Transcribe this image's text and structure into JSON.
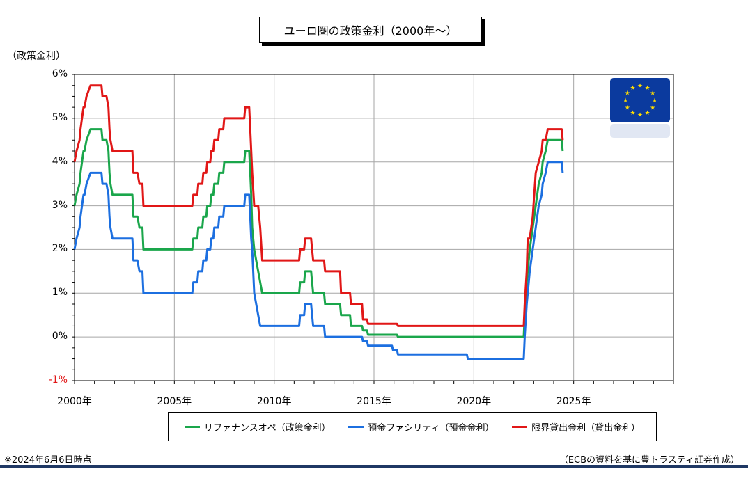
{
  "title": "ユーロ圏の政策金利（2000年～）",
  "ylabel": "（政策金利）",
  "footnote": "※2024年6月6日時点",
  "source": "（ECBの資料を基に豊トラスティ証券作成）",
  "colors": {
    "mro": "#1aa64b",
    "deposit": "#1c6fe0",
    "marginal": "#e11717",
    "grid": "#a6a6a6",
    "flag": "#0b3a9e",
    "star": "#ffdd00",
    "bar": "#1f3864"
  },
  "chart_data": {
    "type": "line",
    "xlabel": "",
    "ylabel": "（政策金利）",
    "xlim": [
      2000,
      2030
    ],
    "ylim": [
      -1,
      6
    ],
    "x_ticks": [
      "2000年",
      "2005年",
      "2010年",
      "2015年",
      "2020年",
      "2025年"
    ],
    "y_ticks": [
      "-1%",
      "0%",
      "1%",
      "2%",
      "3%",
      "4%",
      "5%",
      "6%"
    ],
    "legend_position": "bottom",
    "grid": true,
    "series": [
      {
        "name": "リファナンスオペ（政策金利）",
        "color": "#1aa64b",
        "points": [
          [
            2000.0,
            3.0
          ],
          [
            2000.1,
            3.25
          ],
          [
            2000.25,
            3.5
          ],
          [
            2000.3,
            3.75
          ],
          [
            2000.45,
            4.25
          ],
          [
            2000.5,
            4.25
          ],
          [
            2000.6,
            4.5
          ],
          [
            2000.8,
            4.75
          ],
          [
            2001.35,
            4.75
          ],
          [
            2001.4,
            4.5
          ],
          [
            2001.6,
            4.5
          ],
          [
            2001.7,
            4.25
          ],
          [
            2001.75,
            3.75
          ],
          [
            2001.8,
            3.5
          ],
          [
            2001.9,
            3.25
          ],
          [
            2002.9,
            3.25
          ],
          [
            2002.95,
            2.75
          ],
          [
            2003.15,
            2.75
          ],
          [
            2003.25,
            2.5
          ],
          [
            2003.4,
            2.5
          ],
          [
            2003.45,
            2.0
          ],
          [
            2005.9,
            2.0
          ],
          [
            2005.95,
            2.25
          ],
          [
            2006.15,
            2.25
          ],
          [
            2006.2,
            2.5
          ],
          [
            2006.4,
            2.5
          ],
          [
            2006.45,
            2.75
          ],
          [
            2006.6,
            2.75
          ],
          [
            2006.65,
            3.0
          ],
          [
            2006.8,
            3.0
          ],
          [
            2006.85,
            3.25
          ],
          [
            2006.95,
            3.25
          ],
          [
            2007.0,
            3.5
          ],
          [
            2007.2,
            3.5
          ],
          [
            2007.25,
            3.75
          ],
          [
            2007.45,
            3.75
          ],
          [
            2007.5,
            4.0
          ],
          [
            2008.5,
            4.0
          ],
          [
            2008.55,
            4.25
          ],
          [
            2008.75,
            4.25
          ],
          [
            2008.8,
            3.75
          ],
          [
            2008.85,
            3.25
          ],
          [
            2008.9,
            2.5
          ],
          [
            2009.0,
            2.0
          ],
          [
            2009.2,
            1.5
          ],
          [
            2009.3,
            1.25
          ],
          [
            2009.4,
            1.0
          ],
          [
            2011.25,
            1.0
          ],
          [
            2011.3,
            1.25
          ],
          [
            2011.5,
            1.25
          ],
          [
            2011.55,
            1.5
          ],
          [
            2011.85,
            1.5
          ],
          [
            2011.9,
            1.25
          ],
          [
            2011.95,
            1.0
          ],
          [
            2012.5,
            1.0
          ],
          [
            2012.55,
            0.75
          ],
          [
            2013.3,
            0.75
          ],
          [
            2013.35,
            0.5
          ],
          [
            2013.8,
            0.5
          ],
          [
            2013.85,
            0.25
          ],
          [
            2014.4,
            0.25
          ],
          [
            2014.45,
            0.15
          ],
          [
            2014.65,
            0.15
          ],
          [
            2014.7,
            0.05
          ],
          [
            2016.15,
            0.05
          ],
          [
            2016.2,
            0.0
          ],
          [
            2022.5,
            0.0
          ],
          [
            2022.55,
            0.5
          ],
          [
            2022.65,
            1.25
          ],
          [
            2022.8,
            2.0
          ],
          [
            2022.95,
            2.5
          ],
          [
            2023.1,
            3.0
          ],
          [
            2023.25,
            3.5
          ],
          [
            2023.4,
            3.75
          ],
          [
            2023.45,
            4.0
          ],
          [
            2023.6,
            4.25
          ],
          [
            2023.7,
            4.5
          ],
          [
            2024.4,
            4.5
          ],
          [
            2024.45,
            4.25
          ]
        ]
      },
      {
        "name": "預金ファシリティ（預金金利）",
        "color": "#1c6fe0",
        "points": [
          [
            2000.0,
            2.0
          ],
          [
            2000.1,
            2.25
          ],
          [
            2000.25,
            2.5
          ],
          [
            2000.3,
            2.75
          ],
          [
            2000.45,
            3.25
          ],
          [
            2000.5,
            3.25
          ],
          [
            2000.6,
            3.5
          ],
          [
            2000.8,
            3.75
          ],
          [
            2001.35,
            3.75
          ],
          [
            2001.4,
            3.5
          ],
          [
            2001.6,
            3.5
          ],
          [
            2001.7,
            3.25
          ],
          [
            2001.75,
            2.75
          ],
          [
            2001.8,
            2.5
          ],
          [
            2001.9,
            2.25
          ],
          [
            2002.9,
            2.25
          ],
          [
            2002.95,
            1.75
          ],
          [
            2003.15,
            1.75
          ],
          [
            2003.25,
            1.5
          ],
          [
            2003.4,
            1.5
          ],
          [
            2003.45,
            1.0
          ],
          [
            2005.9,
            1.0
          ],
          [
            2005.95,
            1.25
          ],
          [
            2006.15,
            1.25
          ],
          [
            2006.2,
            1.5
          ],
          [
            2006.4,
            1.5
          ],
          [
            2006.45,
            1.75
          ],
          [
            2006.6,
            1.75
          ],
          [
            2006.65,
            2.0
          ],
          [
            2006.8,
            2.0
          ],
          [
            2006.85,
            2.25
          ],
          [
            2006.95,
            2.25
          ],
          [
            2007.0,
            2.5
          ],
          [
            2007.2,
            2.5
          ],
          [
            2007.25,
            2.75
          ],
          [
            2007.45,
            2.75
          ],
          [
            2007.5,
            3.0
          ],
          [
            2008.5,
            3.0
          ],
          [
            2008.55,
            3.25
          ],
          [
            2008.75,
            3.25
          ],
          [
            2008.8,
            2.75
          ],
          [
            2008.85,
            2.25
          ],
          [
            2008.9,
            2.0
          ],
          [
            2009.0,
            1.0
          ],
          [
            2009.2,
            0.5
          ],
          [
            2009.3,
            0.25
          ],
          [
            2011.25,
            0.25
          ],
          [
            2011.3,
            0.5
          ],
          [
            2011.5,
            0.5
          ],
          [
            2011.55,
            0.75
          ],
          [
            2011.85,
            0.75
          ],
          [
            2011.9,
            0.5
          ],
          [
            2011.95,
            0.25
          ],
          [
            2012.5,
            0.25
          ],
          [
            2012.55,
            0.0
          ],
          [
            2014.4,
            0.0
          ],
          [
            2014.45,
            -0.1
          ],
          [
            2014.65,
            -0.1
          ],
          [
            2014.7,
            -0.2
          ],
          [
            2015.9,
            -0.2
          ],
          [
            2015.95,
            -0.3
          ],
          [
            2016.15,
            -0.3
          ],
          [
            2016.2,
            -0.4
          ],
          [
            2019.65,
            -0.4
          ],
          [
            2019.7,
            -0.5
          ],
          [
            2022.5,
            -0.5
          ],
          [
            2022.55,
            0.0
          ],
          [
            2022.65,
            0.75
          ],
          [
            2022.8,
            1.5
          ],
          [
            2022.95,
            2.0
          ],
          [
            2023.1,
            2.5
          ],
          [
            2023.25,
            3.0
          ],
          [
            2023.4,
            3.25
          ],
          [
            2023.45,
            3.5
          ],
          [
            2023.6,
            3.75
          ],
          [
            2023.7,
            4.0
          ],
          [
            2024.4,
            4.0
          ],
          [
            2024.45,
            3.75
          ]
        ]
      },
      {
        "name": "限界貸出金利（貸出金利）",
        "color": "#e11717",
        "points": [
          [
            2000.0,
            4.0
          ],
          [
            2000.1,
            4.25
          ],
          [
            2000.25,
            4.5
          ],
          [
            2000.3,
            4.75
          ],
          [
            2000.45,
            5.25
          ],
          [
            2000.5,
            5.25
          ],
          [
            2000.6,
            5.5
          ],
          [
            2000.8,
            5.75
          ],
          [
            2001.35,
            5.75
          ],
          [
            2001.4,
            5.5
          ],
          [
            2001.6,
            5.5
          ],
          [
            2001.7,
            5.25
          ],
          [
            2001.75,
            4.75
          ],
          [
            2001.8,
            4.5
          ],
          [
            2001.9,
            4.25
          ],
          [
            2002.9,
            4.25
          ],
          [
            2002.95,
            3.75
          ],
          [
            2003.15,
            3.75
          ],
          [
            2003.25,
            3.5
          ],
          [
            2003.4,
            3.5
          ],
          [
            2003.45,
            3.0
          ],
          [
            2005.9,
            3.0
          ],
          [
            2005.95,
            3.25
          ],
          [
            2006.15,
            3.25
          ],
          [
            2006.2,
            3.5
          ],
          [
            2006.4,
            3.5
          ],
          [
            2006.45,
            3.75
          ],
          [
            2006.6,
            3.75
          ],
          [
            2006.65,
            4.0
          ],
          [
            2006.8,
            4.0
          ],
          [
            2006.85,
            4.25
          ],
          [
            2006.95,
            4.25
          ],
          [
            2007.0,
            4.5
          ],
          [
            2007.2,
            4.5
          ],
          [
            2007.25,
            4.75
          ],
          [
            2007.45,
            4.75
          ],
          [
            2007.5,
            5.0
          ],
          [
            2008.5,
            5.0
          ],
          [
            2008.55,
            5.25
          ],
          [
            2008.75,
            5.25
          ],
          [
            2008.8,
            4.75
          ],
          [
            2008.85,
            4.25
          ],
          [
            2008.9,
            3.75
          ],
          [
            2009.0,
            3.0
          ],
          [
            2009.2,
            3.0
          ],
          [
            2009.3,
            2.5
          ],
          [
            2009.4,
            1.75
          ],
          [
            2011.25,
            1.75
          ],
          [
            2011.3,
            2.0
          ],
          [
            2011.5,
            2.0
          ],
          [
            2011.55,
            2.25
          ],
          [
            2011.85,
            2.25
          ],
          [
            2011.9,
            2.0
          ],
          [
            2011.95,
            1.75
          ],
          [
            2012.5,
            1.75
          ],
          [
            2012.55,
            1.5
          ],
          [
            2013.3,
            1.5
          ],
          [
            2013.35,
            1.0
          ],
          [
            2013.8,
            1.0
          ],
          [
            2013.85,
            0.75
          ],
          [
            2014.4,
            0.75
          ],
          [
            2014.45,
            0.4
          ],
          [
            2014.65,
            0.4
          ],
          [
            2014.7,
            0.3
          ],
          [
            2016.15,
            0.3
          ],
          [
            2016.2,
            0.25
          ],
          [
            2022.5,
            0.25
          ],
          [
            2022.55,
            0.75
          ],
          [
            2022.65,
            1.5
          ],
          [
            2022.7,
            2.25
          ],
          [
            2022.8,
            2.25
          ],
          [
            2022.95,
            2.75
          ],
          [
            2023.1,
            3.75
          ],
          [
            2023.25,
            4.0
          ],
          [
            2023.4,
            4.25
          ],
          [
            2023.45,
            4.5
          ],
          [
            2023.6,
            4.5
          ],
          [
            2023.7,
            4.75
          ],
          [
            2024.4,
            4.75
          ],
          [
            2024.45,
            4.5
          ]
        ]
      }
    ]
  }
}
